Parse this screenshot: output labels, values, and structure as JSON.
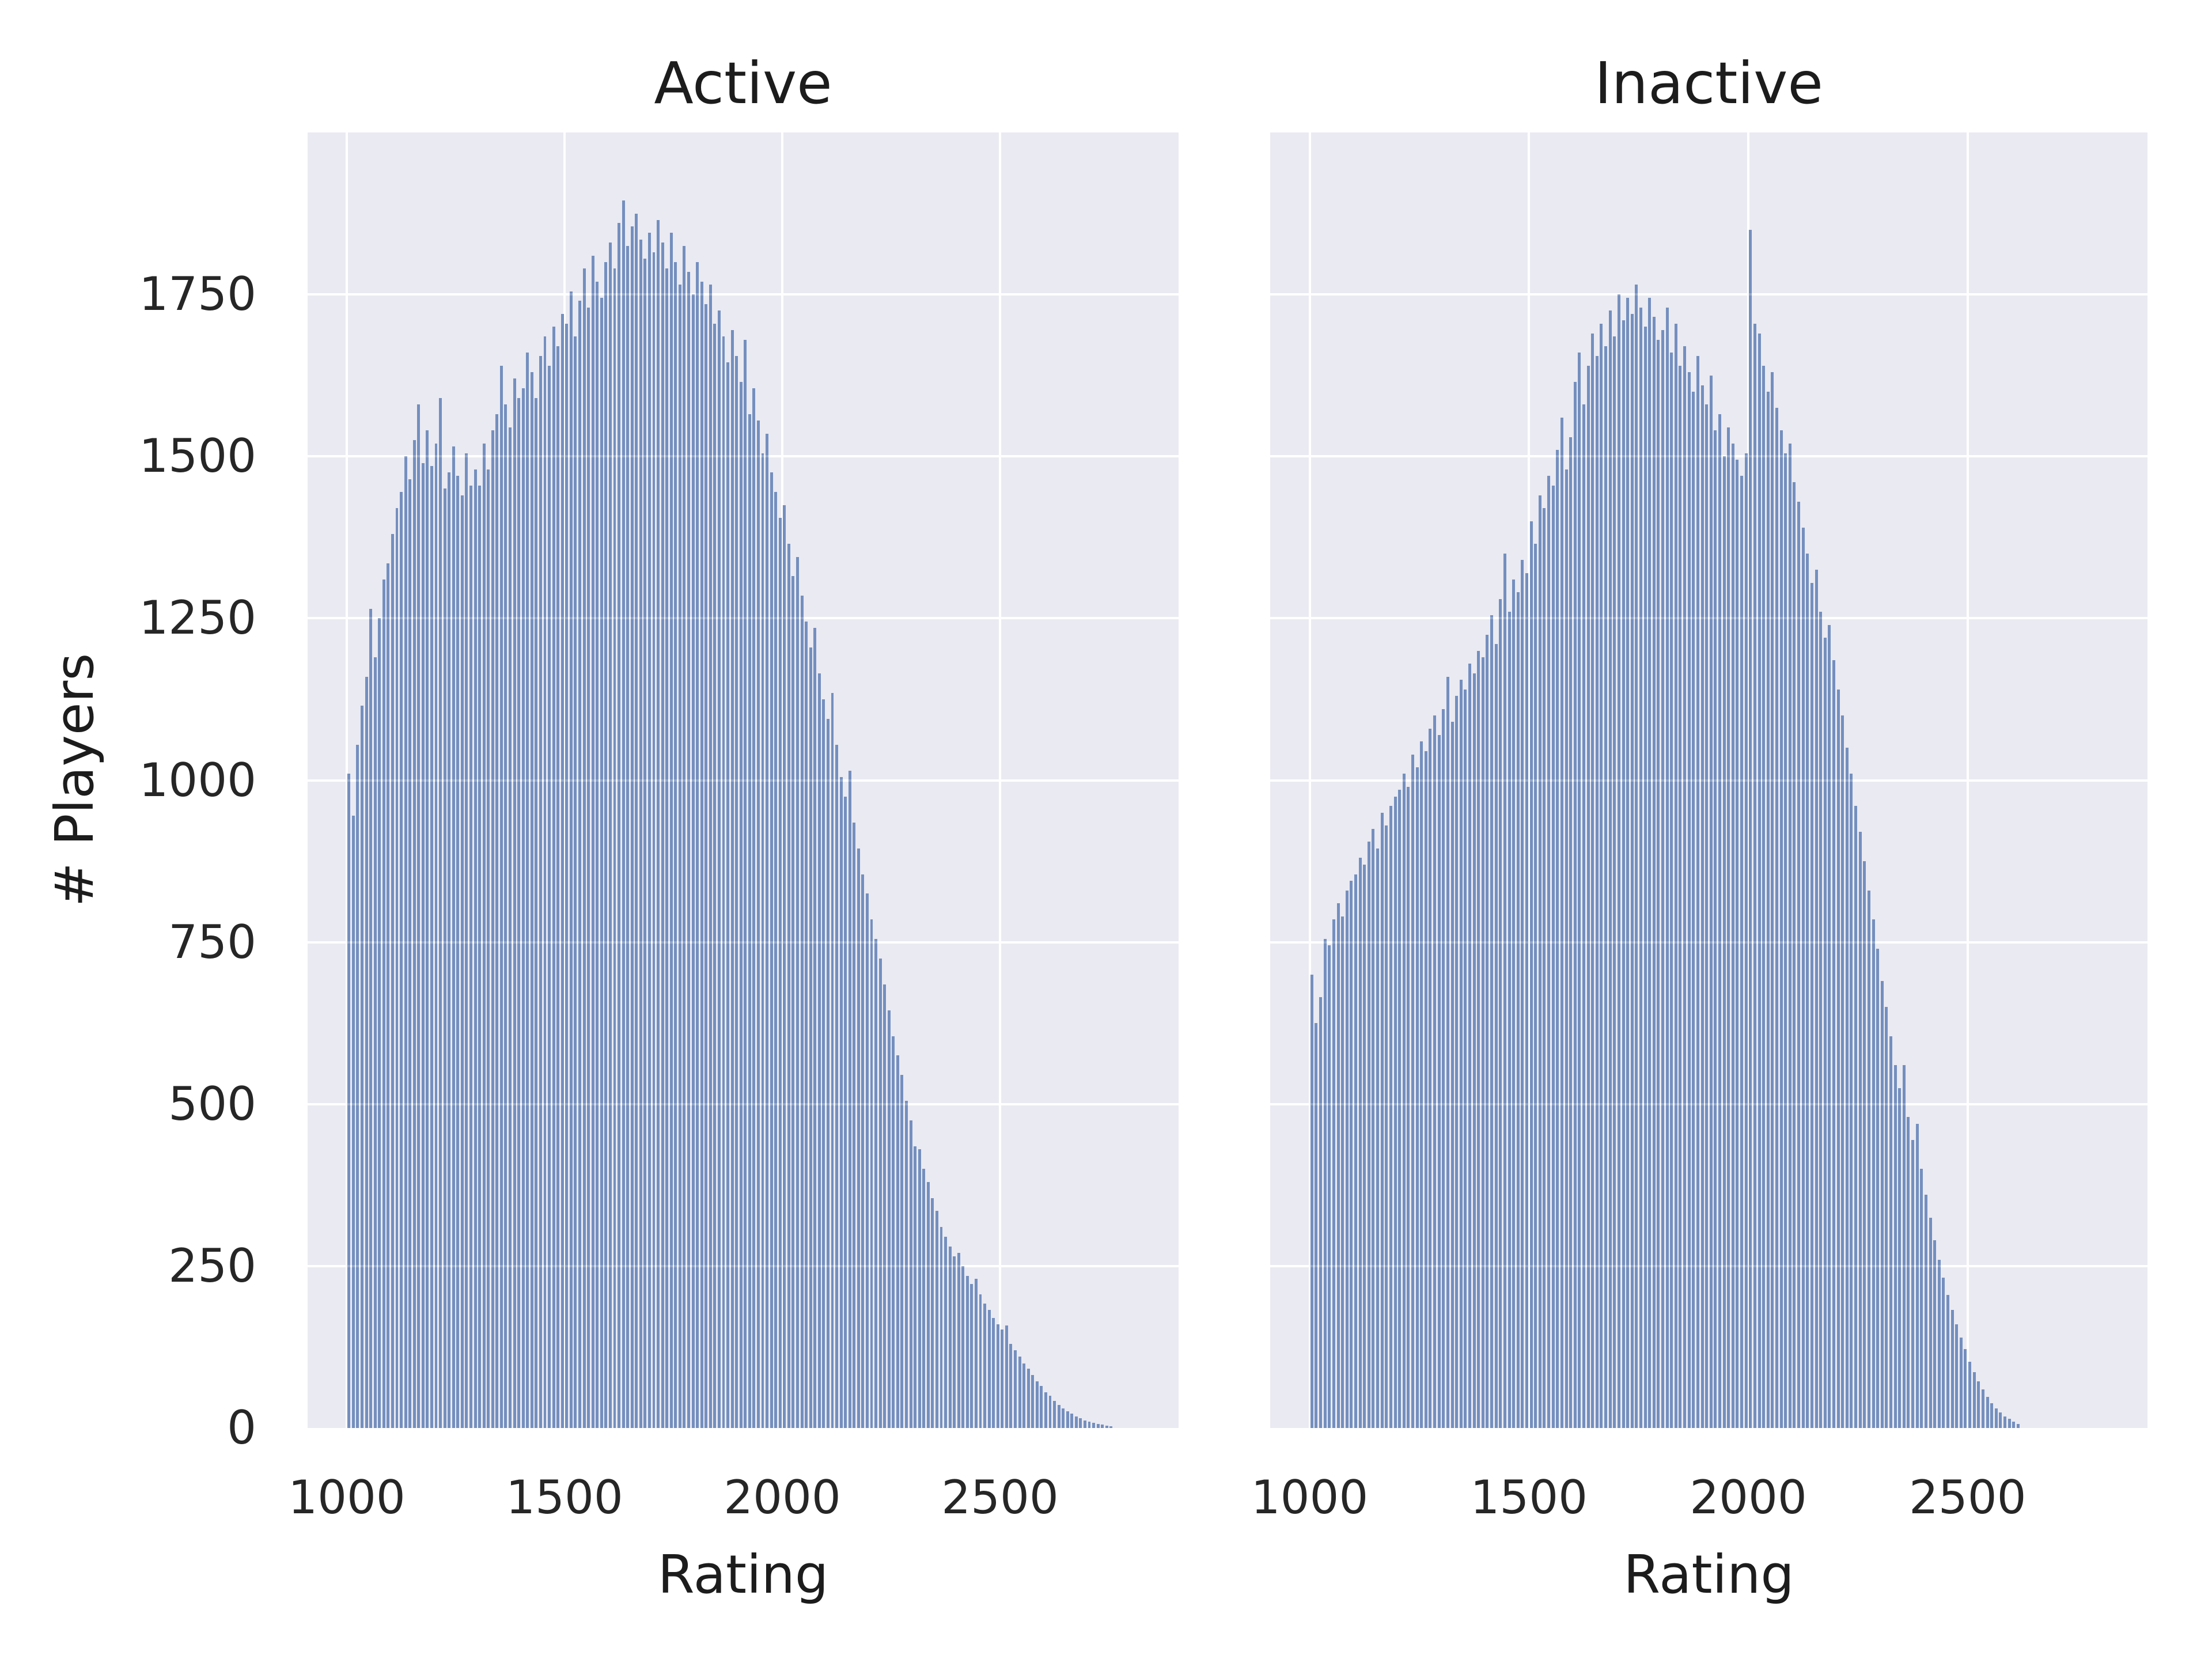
{
  "figure": {
    "background": "#ffffff",
    "panel_background": "#eaeaf2",
    "grid_color": "#ffffff",
    "bar_color": "#748fbe",
    "bar_edge_color": "#ffffff",
    "text_color": "#262626",
    "title_color": "#1c1c1c"
  },
  "shared": {
    "ylabel": "# Players"
  },
  "chart_data": [
    {
      "type": "bar",
      "subtype": "histogram",
      "title": "Active",
      "xlabel": "Rating",
      "ylabel": "# Players",
      "grid": true,
      "legend": false,
      "bin_start": 1000,
      "bin_width": 10,
      "xlim": [
        910,
        2910
      ],
      "ylim": [
        0,
        2000
      ],
      "x_ticks": [
        1000,
        1500,
        2000,
        2500
      ],
      "y_ticks": [
        0,
        250,
        500,
        750,
        1000,
        1250,
        1500,
        1750
      ],
      "values": [
        1010,
        945,
        1055,
        1115,
        1160,
        1265,
        1190,
        1250,
        1310,
        1335,
        1380,
        1420,
        1445,
        1500,
        1465,
        1525,
        1580,
        1490,
        1540,
        1485,
        1520,
        1590,
        1450,
        1475,
        1515,
        1470,
        1440,
        1505,
        1455,
        1480,
        1455,
        1520,
        1480,
        1540,
        1565,
        1640,
        1580,
        1545,
        1620,
        1590,
        1605,
        1660,
        1630,
        1590,
        1655,
        1685,
        1640,
        1700,
        1670,
        1720,
        1705,
        1755,
        1685,
        1740,
        1790,
        1730,
        1810,
        1770,
        1745,
        1800,
        1830,
        1790,
        1860,
        1895,
        1825,
        1855,
        1875,
        1835,
        1805,
        1845,
        1815,
        1865,
        1830,
        1790,
        1845,
        1800,
        1765,
        1825,
        1785,
        1750,
        1800,
        1770,
        1735,
        1765,
        1705,
        1725,
        1685,
        1645,
        1695,
        1655,
        1615,
        1680,
        1565,
        1605,
        1555,
        1505,
        1535,
        1475,
        1445,
        1405,
        1425,
        1365,
        1315,
        1345,
        1285,
        1245,
        1205,
        1235,
        1165,
        1125,
        1095,
        1135,
        1055,
        1005,
        975,
        1015,
        935,
        895,
        855,
        825,
        785,
        755,
        725,
        685,
        645,
        605,
        575,
        545,
        505,
        475,
        435,
        430,
        400,
        380,
        355,
        335,
        310,
        295,
        280,
        265,
        270,
        250,
        235,
        222,
        230,
        206,
        192,
        182,
        170,
        160,
        152,
        158,
        130,
        120,
        110,
        100,
        92,
        82,
        72,
        65,
        55,
        50,
        42,
        36,
        30,
        26,
        22,
        18,
        15,
        12,
        10,
        8,
        6,
        5,
        4,
        3
      ]
    },
    {
      "type": "bar",
      "subtype": "histogram",
      "title": "Inactive",
      "xlabel": "Rating",
      "ylabel": "# Players",
      "grid": true,
      "legend": false,
      "bin_start": 1000,
      "bin_width": 10,
      "xlim": [
        910,
        2910
      ],
      "ylim": [
        0,
        2000
      ],
      "x_ticks": [
        1000,
        1500,
        2000,
        2500
      ],
      "y_ticks": [
        0,
        250,
        500,
        750,
        1000,
        1250,
        1500,
        1750
      ],
      "values": [
        700,
        625,
        665,
        755,
        745,
        785,
        810,
        790,
        830,
        845,
        855,
        880,
        870,
        905,
        925,
        895,
        950,
        930,
        960,
        975,
        985,
        1010,
        990,
        1040,
        1020,
        1060,
        1045,
        1080,
        1100,
        1070,
        1110,
        1160,
        1090,
        1130,
        1155,
        1140,
        1180,
        1165,
        1200,
        1190,
        1225,
        1255,
        1210,
        1280,
        1350,
        1260,
        1310,
        1290,
        1340,
        1320,
        1400,
        1365,
        1440,
        1420,
        1470,
        1455,
        1510,
        1560,
        1480,
        1530,
        1615,
        1660,
        1580,
        1640,
        1690,
        1655,
        1705,
        1670,
        1725,
        1685,
        1750,
        1710,
        1745,
        1720,
        1765,
        1730,
        1700,
        1745,
        1715,
        1680,
        1695,
        1730,
        1660,
        1705,
        1640,
        1670,
        1630,
        1600,
        1655,
        1610,
        1580,
        1625,
        1540,
        1565,
        1500,
        1545,
        1520,
        1495,
        1470,
        1505,
        1850,
        1705,
        1690,
        1640,
        1600,
        1630,
        1575,
        1540,
        1505,
        1520,
        1460,
        1430,
        1390,
        1350,
        1305,
        1325,
        1260,
        1220,
        1240,
        1185,
        1140,
        1100,
        1050,
        1010,
        960,
        920,
        875,
        830,
        785,
        740,
        690,
        650,
        605,
        560,
        525,
        560,
        480,
        445,
        470,
        400,
        360,
        325,
        290,
        260,
        232,
        205,
        182,
        160,
        140,
        122,
        102,
        86,
        72,
        60,
        48,
        38,
        30,
        24,
        18,
        14,
        10,
        6
      ]
    }
  ]
}
